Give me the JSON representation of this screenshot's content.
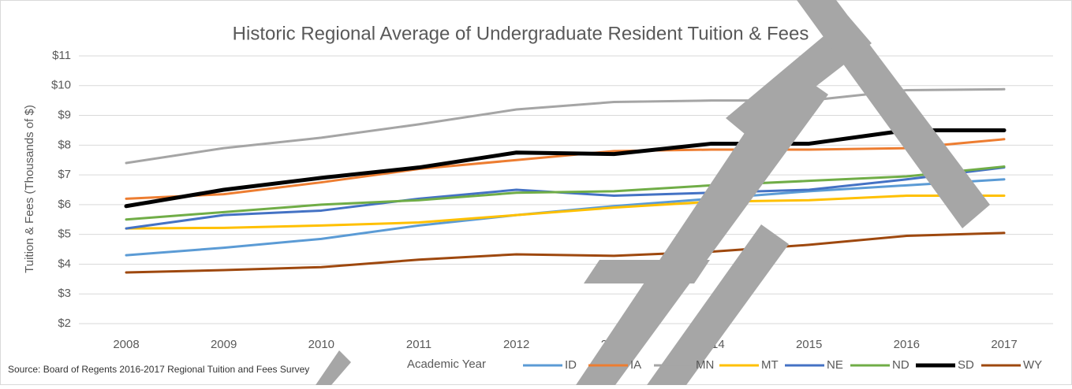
{
  "chart_data": {
    "type": "line",
    "title": "Historic Regional Average of Undergraduate Resident Tuition & Fees",
    "y_label": "Tuition & Fees (Thousands of $)",
    "x_label": "Academic Year",
    "source": "Source: Board of Regents 2016-2017 Regional Tuition and Fees Survey",
    "categories": [
      "2008",
      "2009",
      "2010",
      "2011",
      "2012",
      "2013",
      "2014",
      "2015",
      "2016",
      "2017"
    ],
    "ylim": [
      2,
      11
    ],
    "yticks": [
      {
        "value": 2,
        "label": "$2"
      },
      {
        "value": 3,
        "label": "$3"
      },
      {
        "value": 4,
        "label": "$4"
      },
      {
        "value": 5,
        "label": "$5"
      },
      {
        "value": 6,
        "label": "$6"
      },
      {
        "value": 7,
        "label": "$7"
      },
      {
        "value": 8,
        "label": "$8"
      },
      {
        "value": 9,
        "label": "$9"
      },
      {
        "value": 10,
        "label": "$10"
      },
      {
        "value": 11,
        "label": "$11"
      }
    ],
    "grid": true,
    "legend": "bottom",
    "series": [
      {
        "name": "ID",
        "color": "#5b9bd5",
        "width": 3,
        "values": [
          4.3,
          4.55,
          4.85,
          5.3,
          5.65,
          5.95,
          6.2,
          6.45,
          6.65,
          6.85
        ]
      },
      {
        "name": "IA",
        "color": "#ed7d31",
        "width": 3,
        "values": [
          6.2,
          6.35,
          6.75,
          7.2,
          7.5,
          7.8,
          7.85,
          7.85,
          7.9,
          8.2
        ]
      },
      {
        "name": "MN",
        "color": "#a5a5a5",
        "width": 3,
        "values": [
          7.4,
          7.9,
          8.25,
          8.7,
          9.2,
          9.45,
          9.5,
          9.5,
          9.85,
          9.88
        ]
      },
      {
        "name": "MT",
        "color": "#ffc000",
        "width": 3,
        "values": [
          5.2,
          5.22,
          5.3,
          5.4,
          5.65,
          5.9,
          6.1,
          6.15,
          6.3,
          6.3
        ]
      },
      {
        "name": "NE",
        "color": "#4472c4",
        "width": 3,
        "values": [
          5.2,
          5.65,
          5.8,
          6.2,
          6.5,
          6.3,
          6.4,
          6.5,
          6.85,
          7.25
        ]
      },
      {
        "name": "ND",
        "color": "#70ad47",
        "width": 3,
        "values": [
          5.5,
          5.75,
          6.0,
          6.15,
          6.4,
          6.45,
          6.65,
          6.8,
          6.95,
          7.28
        ]
      },
      {
        "name": "SD",
        "color": "#000000",
        "width": 5,
        "values": [
          5.95,
          6.5,
          6.9,
          7.25,
          7.75,
          7.7,
          8.05,
          8.05,
          8.5,
          8.5
        ]
      },
      {
        "name": "WY",
        "color": "#9e480e",
        "width": 3,
        "values": [
          3.72,
          3.8,
          3.9,
          4.15,
          4.33,
          4.28,
          4.42,
          4.65,
          4.95,
          5.05
        ]
      }
    ]
  }
}
